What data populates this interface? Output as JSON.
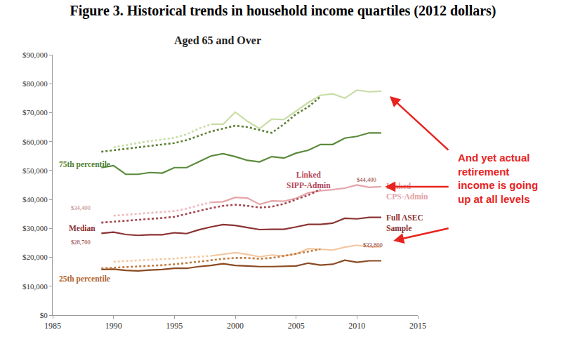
{
  "chart_data": {
    "type": "line",
    "title": "Figure 3. Historical trends in household income quartiles (2012 dollars)",
    "subtitle": "Aged 65 and Over",
    "x": [
      1989,
      1990,
      1991,
      1992,
      1993,
      1994,
      1995,
      1996,
      1997,
      1998,
      1999,
      2000,
      2001,
      2002,
      2003,
      2004,
      2005,
      2006,
      2007,
      2008,
      2009,
      2010,
      2011,
      2012
    ],
    "xlim": [
      1985,
      2015
    ],
    "xticks": [
      1985,
      1990,
      1995,
      2000,
      2005,
      2010,
      2015
    ],
    "ylim": [
      0,
      90000
    ],
    "yticks": [
      {
        "value": 0,
        "label": "$0"
      },
      {
        "value": 10000,
        "label": "$10,000"
      },
      {
        "value": 20000,
        "label": "$20,000"
      },
      {
        "value": 30000,
        "label": "$30,000"
      },
      {
        "value": 40000,
        "label": "$40,000"
      },
      {
        "value": 50000,
        "label": "$50,000"
      },
      {
        "value": 60000,
        "label": "$60,000"
      },
      {
        "value": 70000,
        "label": "$70,000"
      },
      {
        "value": 80000,
        "label": "$80,000"
      },
      {
        "value": 90000,
        "label": "$90,000"
      }
    ],
    "grid": false,
    "series": [
      {
        "color": "#5b8a3c",
        "line_style": "solid",
        "values": [
          51000,
          51700,
          48700,
          48700,
          49300,
          49100,
          51000,
          51000,
          53000,
          55000,
          55800,
          54800,
          53500,
          53000,
          54800,
          54300,
          56000,
          57000,
          59000,
          59000,
          61200,
          61800,
          63000,
          63000
        ]
      },
      {
        "color": "#c8dea6",
        "line_style": "solid",
        "values": [
          null,
          null,
          null,
          null,
          null,
          null,
          null,
          null,
          null,
          66000,
          66000,
          70200,
          67000,
          64500,
          67800,
          67600,
          70500,
          73500,
          76000,
          76500,
          75000,
          77800,
          77200,
          77400
        ]
      },
      {
        "color": "#c8dea6",
        "line_style": "dot",
        "values": [
          null,
          58000,
          58800,
          59500,
          60200,
          60700,
          61300,
          62500,
          64500,
          66000,
          null,
          null,
          null,
          null,
          null,
          null,
          null,
          null,
          null,
          null,
          null,
          null,
          null,
          null
        ]
      },
      {
        "color": "#5e7f35",
        "line_style": "dot",
        "values": [
          56500,
          57000,
          57500,
          58000,
          58600,
          59000,
          59500,
          60500,
          62000,
          63500,
          64500,
          65500,
          65000,
          64000,
          63000,
          66000,
          69500,
          72000,
          75500,
          null,
          null,
          null,
          null,
          null
        ]
      },
      {
        "color": "#8c3333",
        "line_style": "solid",
        "values": [
          28300,
          28700,
          27900,
          27600,
          27800,
          27800,
          28500,
          28200,
          29500,
          30500,
          31300,
          31000,
          30300,
          29600,
          29700,
          29700,
          30500,
          31400,
          31400,
          31800,
          33500,
          33300,
          33800,
          33800
        ]
      },
      {
        "color": "#e6a4a9",
        "line_style": "solid",
        "values": [
          null,
          null,
          null,
          null,
          null,
          null,
          null,
          null,
          null,
          39000,
          39200,
          40700,
          40500,
          38300,
          39500,
          39400,
          40400,
          42300,
          43000,
          43400,
          43900,
          45000,
          44200,
          44400
        ]
      },
      {
        "color": "#eeb9bd",
        "line_style": "dot",
        "values": [
          null,
          34400,
          34700,
          35000,
          35300,
          35600,
          36000,
          36800,
          38000,
          39000,
          null,
          null,
          null,
          null,
          null,
          null,
          null,
          null,
          null,
          null,
          null,
          null,
          null,
          null
        ]
      },
      {
        "color": "#a3454e",
        "line_style": "dot",
        "values": [
          32000,
          32300,
          32600,
          33000,
          33300,
          33600,
          34000,
          35000,
          36000,
          37000,
          37800,
          38200,
          37800,
          37200,
          37500,
          38500,
          40000,
          41500,
          43500,
          null,
          null,
          null,
          null,
          null
        ]
      },
      {
        "color": "#8a4a22",
        "line_style": "solid",
        "values": [
          15800,
          15900,
          15500,
          15300,
          15600,
          15800,
          16200,
          16200,
          16800,
          17200,
          17800,
          17200,
          17000,
          16800,
          16800,
          16900,
          17000,
          18000,
          17300,
          17600,
          19000,
          18300,
          18800,
          18800
        ]
      },
      {
        "color": "#f4c7a1",
        "line_style": "solid",
        "values": [
          null,
          null,
          null,
          null,
          null,
          null,
          null,
          null,
          null,
          20500,
          21000,
          21600,
          21000,
          20200,
          20800,
          20500,
          21200,
          23000,
          22800,
          22500,
          23500,
          24200,
          23600,
          23600
        ]
      },
      {
        "color": "#f4c7a1",
        "line_style": "dot",
        "values": [
          null,
          18500,
          18700,
          18900,
          19100,
          19300,
          19600,
          19900,
          20200,
          20500,
          null,
          null,
          null,
          null,
          null,
          null,
          null,
          null,
          null,
          null,
          null,
          null,
          null,
          null
        ]
      },
      {
        "color": "#c07a3e",
        "line_style": "dot",
        "values": [
          16200,
          16400,
          16600,
          16800,
          17000,
          17300,
          17600,
          18000,
          18500,
          19000,
          19500,
          19800,
          19800,
          19500,
          19800,
          20500,
          21200,
          22000,
          22800,
          null,
          null,
          null,
          null,
          null
        ]
      }
    ],
    "annotations": [
      {
        "lines": [
          "75th percentile"
        ],
        "x": 1985.4,
        "y": 52000,
        "color": "#4f7f2f",
        "align": "left"
      },
      {
        "lines": [
          "Linked",
          "SIPP-Admin"
        ],
        "x": 2006,
        "y": 46800,
        "color": "#b5485a",
        "align": "center"
      },
      {
        "lines": [
          "Linked",
          "CPS-Admin"
        ],
        "x": 2012.3,
        "y": 42700,
        "color": "#e3a3a8",
        "align": "left"
      },
      {
        "lines": [
          "Median"
        ],
        "x": 1987.4,
        "y": 30000,
        "color": "#8b3232",
        "align": "center"
      },
      {
        "lines": [
          "Full ASEC",
          "Sample"
        ],
        "x": 2012.3,
        "y": 31800,
        "color": "#8b3232",
        "align": "left"
      },
      {
        "lines": [
          "25th percentile"
        ],
        "x": 1985.4,
        "y": 12600,
        "color": "#b0642a",
        "align": "left"
      }
    ],
    "value_annotations": [
      {
        "text": "$34,400",
        "x": 1987.3,
        "y": 37000,
        "color": "#b87a7e"
      },
      {
        "text": "$28,700",
        "x": 1987.3,
        "y": 25300,
        "color": "#8b3232"
      },
      {
        "text": "$44,400",
        "x": 2010.8,
        "y": 46800,
        "color": "#8b3232"
      },
      {
        "text": "$33,800",
        "x": 2011.3,
        "y": 24200,
        "color": "#8b3232"
      }
    ],
    "callout": {
      "lines": [
        "And yet actual",
        "retirement",
        "income is going",
        "up at all levels"
      ],
      "color": "#e8231f"
    }
  }
}
